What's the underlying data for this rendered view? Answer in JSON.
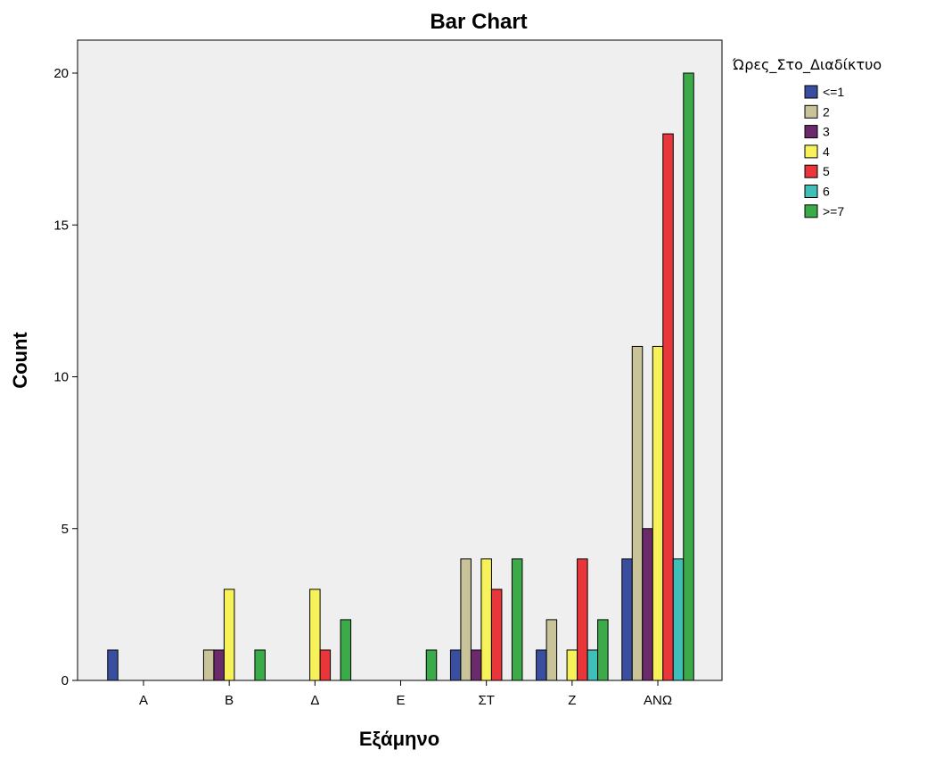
{
  "chart_data": {
    "type": "bar",
    "title": "Bar Chart",
    "xlabel": "Εξάμηνο",
    "ylabel": "Count",
    "categories": [
      "Α",
      "Β",
      "Δ",
      "Ε",
      "ΣΤ",
      "Ζ",
      "ΑΝΩ"
    ],
    "ylim": [
      0,
      20
    ],
    "yticks": [
      0,
      5,
      10,
      15,
      20
    ],
    "grid": false,
    "legend_title": "Ώρες_Στο_Διαδίκτυο",
    "legend_position": "right",
    "series": [
      {
        "name": "<=1",
        "color": "#3a4ea0",
        "values": [
          1,
          0,
          0,
          0,
          1,
          1,
          4
        ]
      },
      {
        "name": "2",
        "color": "#c9c39a",
        "values": [
          0,
          1,
          0,
          0,
          4,
          2,
          11
        ]
      },
      {
        "name": "3",
        "color": "#6b2a6b",
        "values": [
          0,
          1,
          0,
          0,
          1,
          0,
          5
        ]
      },
      {
        "name": "4",
        "color": "#f7f25a",
        "values": [
          0,
          3,
          3,
          0,
          4,
          1,
          11
        ]
      },
      {
        "name": "5",
        "color": "#e8363a",
        "values": [
          0,
          0,
          1,
          0,
          3,
          4,
          18
        ]
      },
      {
        "name": "6",
        "color": "#3fbfb8",
        "values": [
          0,
          0,
          0,
          0,
          0,
          1,
          4
        ]
      },
      {
        "name": ">=7",
        "color": "#3bab4a",
        "values": [
          0,
          1,
          2,
          1,
          4,
          2,
          20
        ]
      }
    ]
  }
}
